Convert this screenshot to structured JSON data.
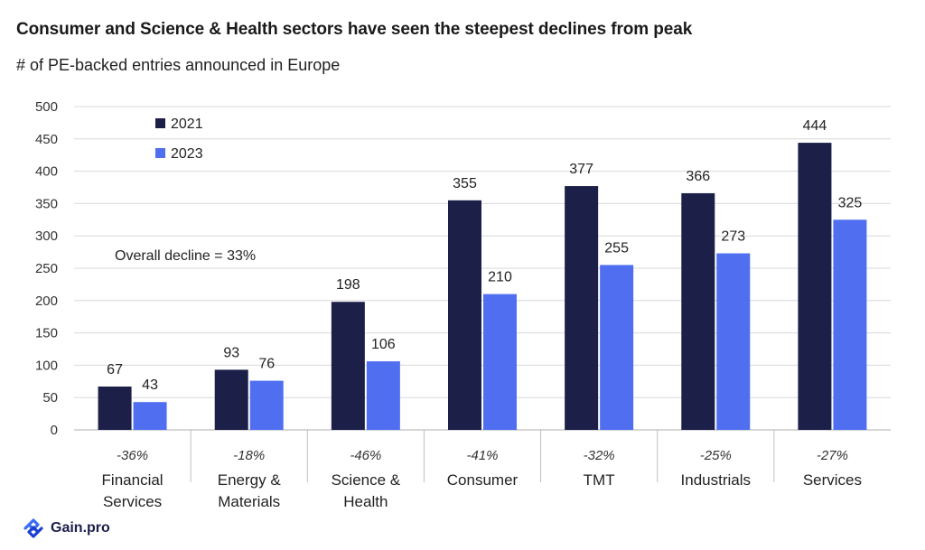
{
  "title": "Consumer and Science & Health sectors have seen the steepest declines from peak",
  "subtitle": "# of PE-backed entries announced in Europe",
  "annotation": "Overall decline  = 33%",
  "brand": {
    "name": "Gain.pro",
    "logo_icon": "gain-pro-logo-icon"
  },
  "colors": {
    "series_2021": "#1c1f48",
    "series_2023": "#4f6ef0",
    "grid": "#d9d9d9",
    "axis": "#bfbfbf"
  },
  "chart_data": {
    "type": "bar",
    "title": "Consumer and Science & Health sectors have seen the steepest declines from peak",
    "subtitle": "# of PE-backed entries announced in Europe",
    "ylabel": "# of PE-backed entries announced in Europe",
    "xlabel": "",
    "ylim": [
      0,
      500
    ],
    "yticks": [
      "0",
      "50",
      "100",
      "150",
      "200",
      "250",
      "300",
      "350",
      "400",
      "450",
      "500"
    ],
    "grid": true,
    "legend_position": "top-left",
    "categories": [
      [
        "Financial",
        "Services"
      ],
      [
        "Energy &",
        "Materials"
      ],
      [
        "Science &",
        "Health"
      ],
      [
        "Consumer"
      ],
      [
        "TMT"
      ],
      [
        "Industrials"
      ],
      [
        "Services"
      ]
    ],
    "changes": [
      "-36%",
      "-18%",
      "-46%",
      "-41%",
      "-32%",
      "-25%",
      "-27%"
    ],
    "series": [
      {
        "name": "2021",
        "values": [
          67,
          93,
          198,
          355,
          377,
          366,
          444
        ]
      },
      {
        "name": "2023",
        "values": [
          43,
          76,
          106,
          210,
          255,
          273,
          325
        ]
      }
    ]
  }
}
